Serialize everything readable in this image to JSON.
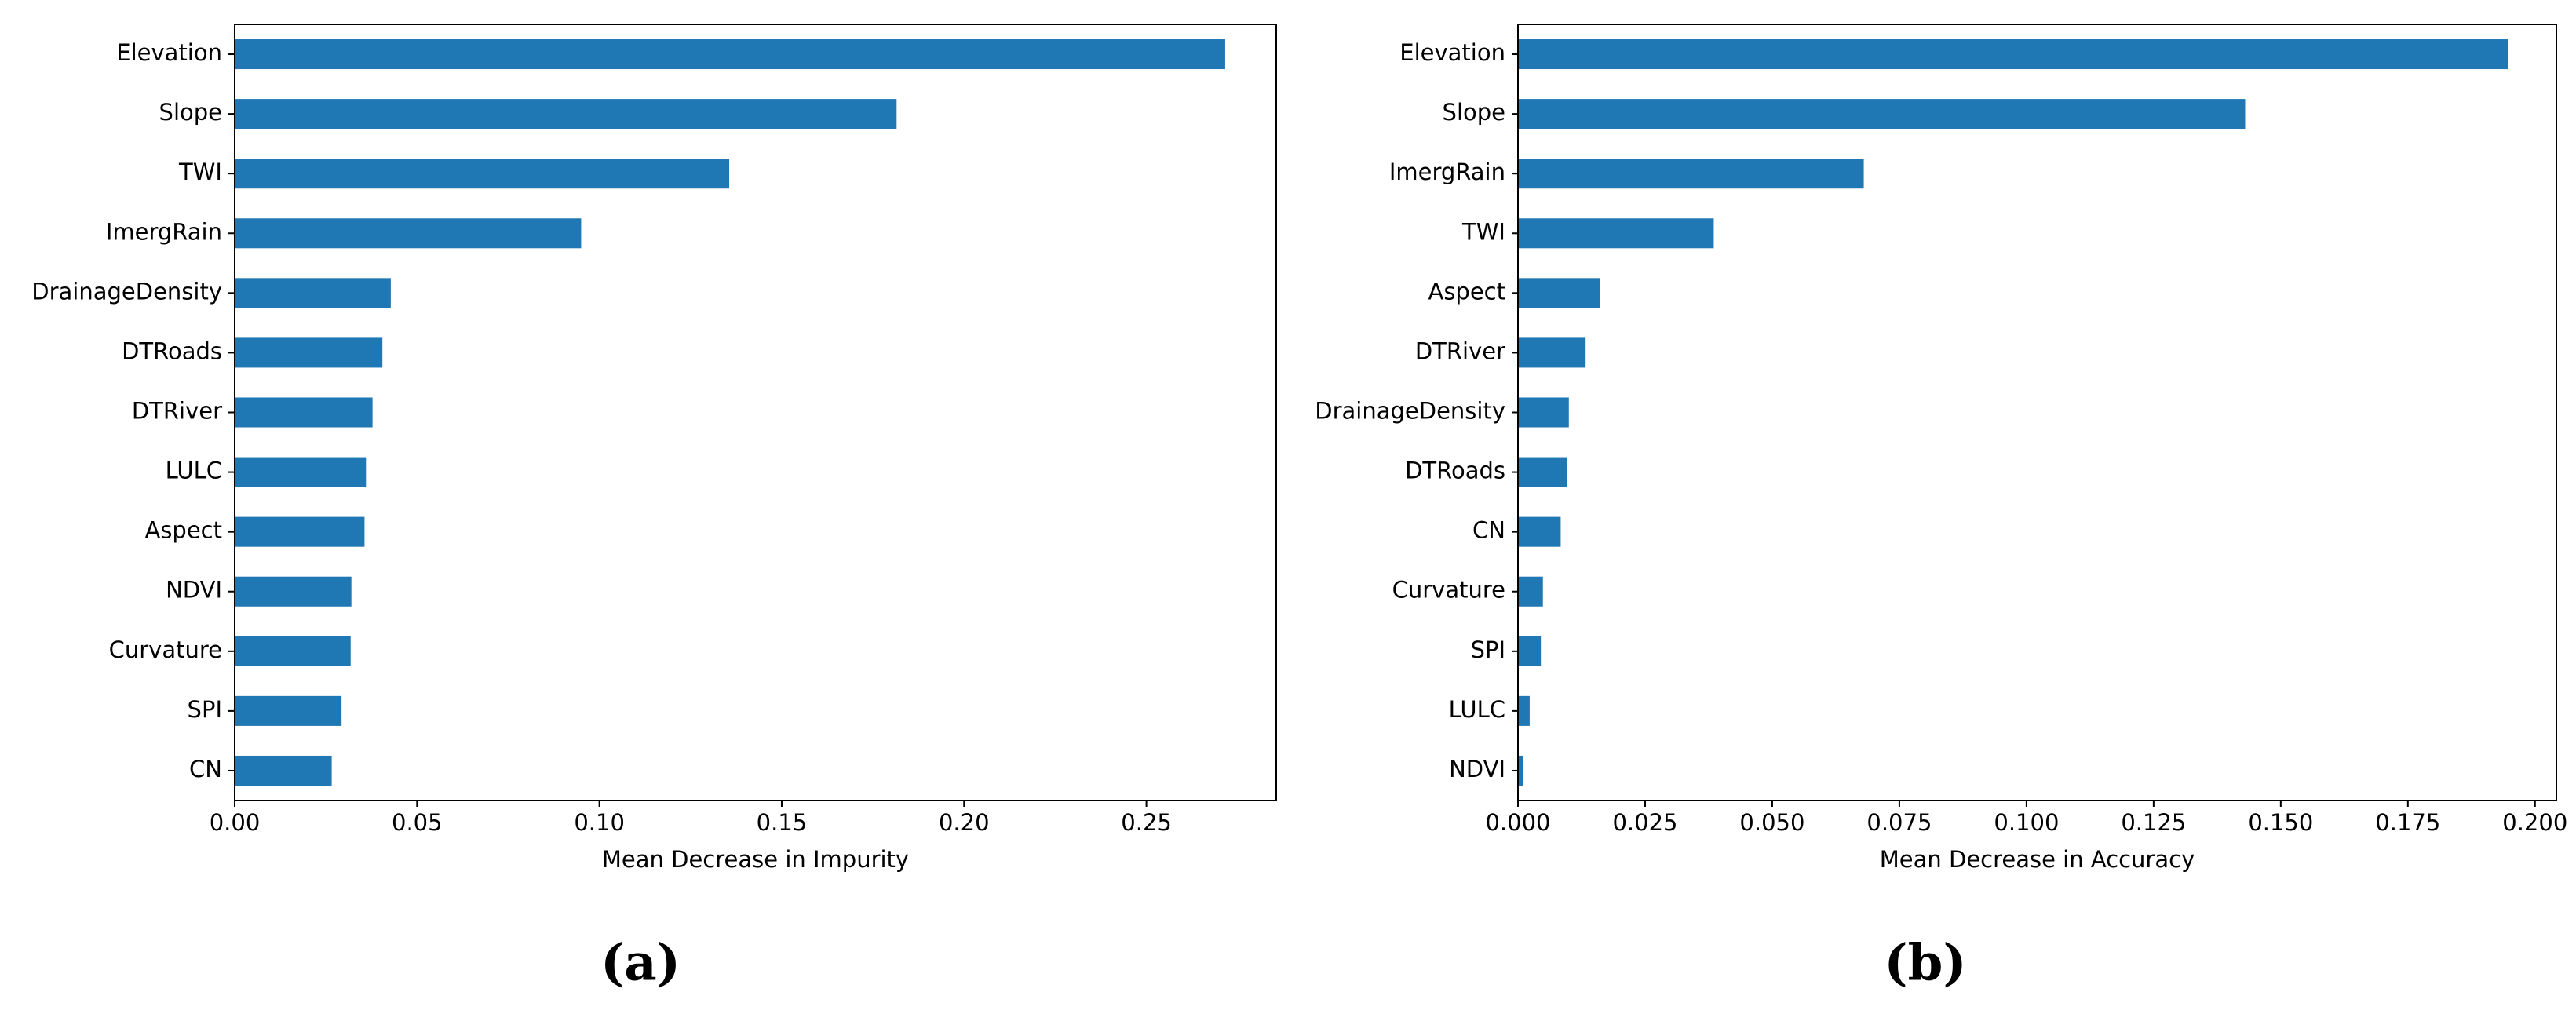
{
  "chart_data": [
    {
      "type": "barh",
      "color": "#1f77b4",
      "xlabel": "Mean Decrease in Impurity",
      "caption": "(a)",
      "categories": [
        "Elevation",
        "Slope",
        "TWI",
        "ImergRain",
        "DrainageDensity",
        "DTRoads",
        "DTRiver",
        "LULC",
        "Aspect",
        "NDVI",
        "Curvature",
        "SPI",
        "CN"
      ],
      "values": [
        0.2716,
        0.1815,
        0.1356,
        0.095,
        0.0428,
        0.0405,
        0.0378,
        0.036,
        0.0356,
        0.032,
        0.0318,
        0.0293,
        0.0266
      ],
      "xlim": [
        0,
        0.2856
      ],
      "xticks": [
        {
          "value": 0,
          "label": "0.00"
        },
        {
          "value": 0.05,
          "label": "0.05"
        },
        {
          "value": 0.1,
          "label": "0.10"
        },
        {
          "value": 0.15,
          "label": "0.15"
        },
        {
          "value": 0.2,
          "label": "0.20"
        },
        {
          "value": 0.25,
          "label": "0.25"
        }
      ]
    },
    {
      "type": "barh",
      "color": "#1f77b4",
      "xlabel": "Mean Decrease in Accuracy",
      "caption": "(b)",
      "categories": [
        "Elevation",
        "Slope",
        "ImergRain",
        "TWI",
        "Aspect",
        "DTRiver",
        "DrainageDensity",
        "DTRoads",
        "CN",
        "Curvature",
        "SPI",
        "LULC",
        "NDVI"
      ],
      "values": [
        0.1947,
        0.143,
        0.068,
        0.0385,
        0.0162,
        0.0133,
        0.01,
        0.0097,
        0.0084,
        0.0049,
        0.0045,
        0.0023,
        0.001
      ],
      "xlim": [
        0,
        0.2042
      ],
      "xticks": [
        {
          "value": 0,
          "label": "0.000"
        },
        {
          "value": 0.025,
          "label": "0.025"
        },
        {
          "value": 0.05,
          "label": "0.050"
        },
        {
          "value": 0.075,
          "label": "0.075"
        },
        {
          "value": 0.1,
          "label": "0.100"
        },
        {
          "value": 0.125,
          "label": "0.125"
        },
        {
          "value": 0.15,
          "label": "0.150"
        },
        {
          "value": 0.175,
          "label": "0.175"
        },
        {
          "value": 0.2,
          "label": "0.200"
        }
      ]
    }
  ]
}
